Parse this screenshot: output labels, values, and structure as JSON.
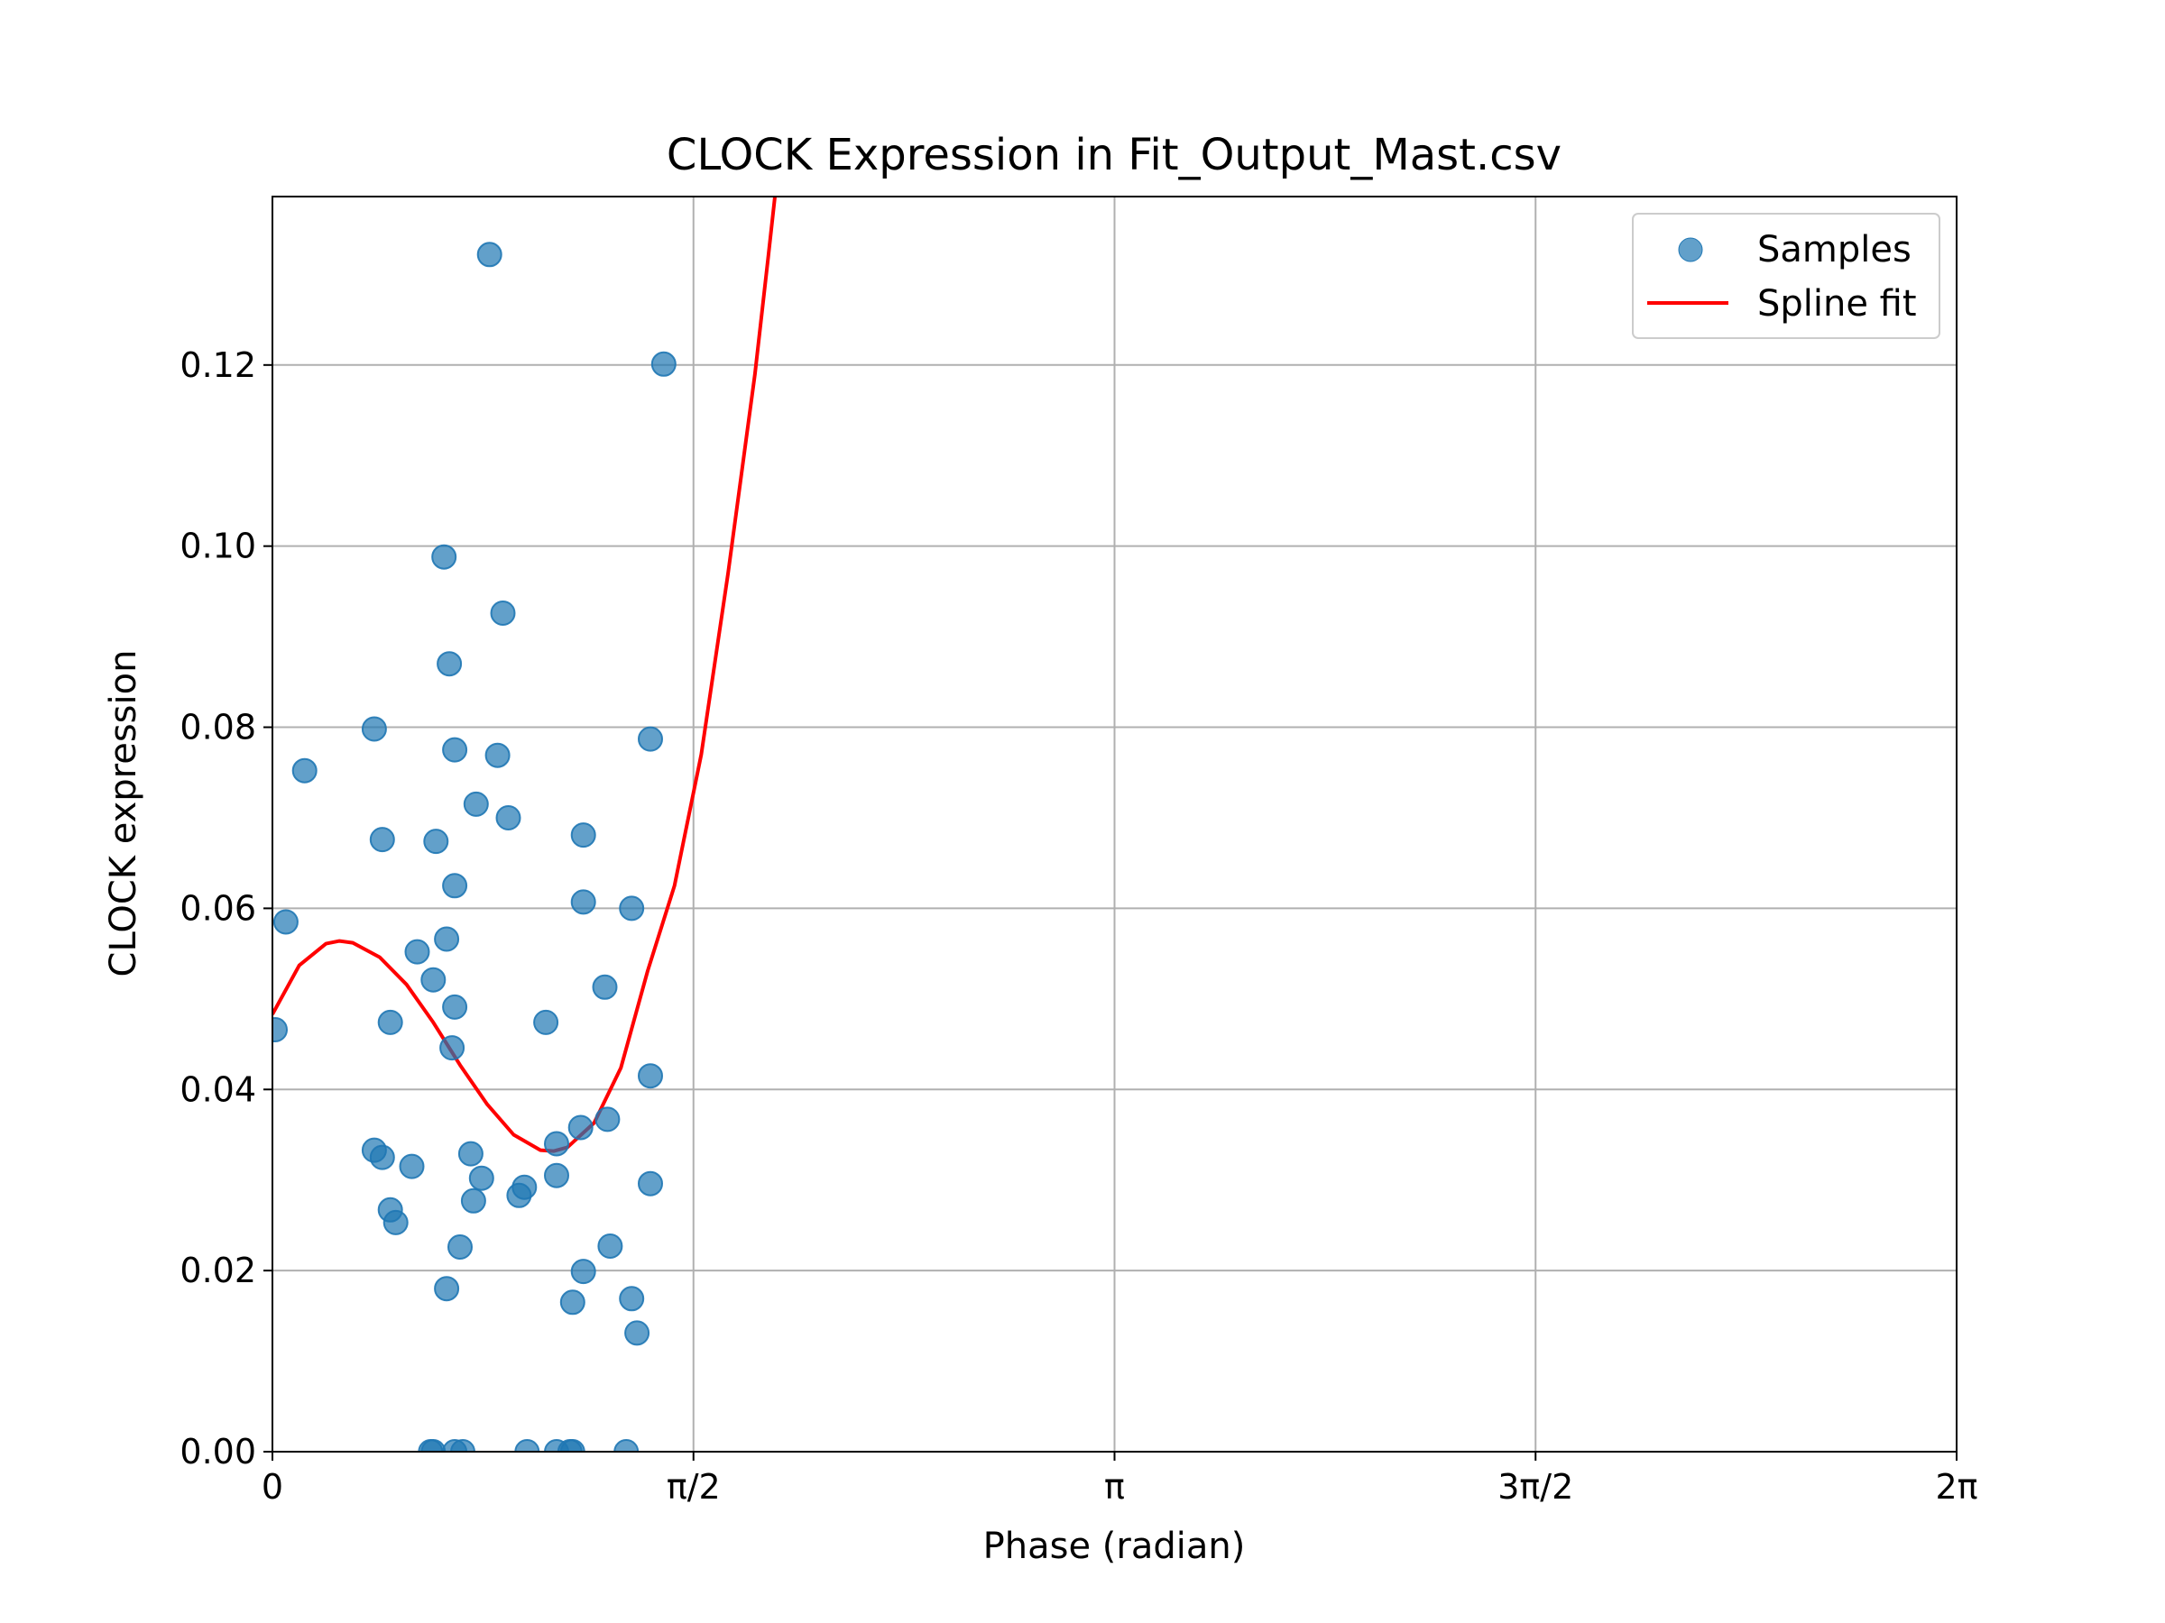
{
  "chart_data": {
    "type": "scatter",
    "title": "CLOCK Expression in Fit_Output_Mast.csv",
    "xlabel": "Phase (radian)",
    "ylabel": "CLOCK expression",
    "xlim": [
      0,
      6.2832
    ],
    "ylim": [
      0,
      0.1386
    ],
    "grid": true,
    "legend_position": "top-right",
    "x_ticks": [
      {
        "value": 0,
        "label": "0"
      },
      {
        "value": 1.5708,
        "label": "π/2"
      },
      {
        "value": 3.1416,
        "label": "π"
      },
      {
        "value": 4.7124,
        "label": "3π/2"
      },
      {
        "value": 6.2832,
        "label": "2π"
      }
    ],
    "y_ticks": [
      {
        "value": 0,
        "label": "0.00"
      },
      {
        "value": 0.02,
        "label": "0.02"
      },
      {
        "value": 0.04,
        "label": "0.04"
      },
      {
        "value": 0.06,
        "label": "0.06"
      },
      {
        "value": 0.08,
        "label": "0.08"
      },
      {
        "value": 0.1,
        "label": "0.10"
      },
      {
        "value": 0.12,
        "label": "0.12"
      }
    ],
    "series": [
      {
        "name": "Samples",
        "kind": "scatter",
        "color": "#1f77b4",
        "alpha": 0.7,
        "points": [
          [
            0.01,
            0.0466
          ],
          [
            0.05,
            0.0585
          ],
          [
            0.12,
            0.0752
          ],
          [
            0.38,
            0.0798
          ],
          [
            0.41,
            0.0676
          ],
          [
            0.38,
            0.0333
          ],
          [
            0.41,
            0.0325
          ],
          [
            0.44,
            0.0474
          ],
          [
            0.44,
            0.0267
          ],
          [
            0.46,
            0.0253
          ],
          [
            0.52,
            0.0315
          ],
          [
            0.54,
            0.0552
          ],
          [
            0.6,
            0.0521
          ],
          [
            0.61,
            0.0674
          ],
          [
            0.64,
            0.0988
          ],
          [
            0.65,
            0.0566
          ],
          [
            0.65,
            0.018
          ],
          [
            0.66,
            0.087
          ],
          [
            0.67,
            0.0446
          ],
          [
            0.68,
            0.0775
          ],
          [
            0.68,
            0.0625
          ],
          [
            0.68,
            0.0491
          ],
          [
            0.7,
            0.0226
          ],
          [
            0.74,
            0.0329
          ],
          [
            0.75,
            0.0277
          ],
          [
            0.76,
            0.0715
          ],
          [
            0.78,
            0.0302
          ],
          [
            0.81,
            0.1322
          ],
          [
            0.84,
            0.0769
          ],
          [
            0.86,
            0.0926
          ],
          [
            0.88,
            0.07
          ],
          [
            0.92,
            0.0283
          ],
          [
            0.94,
            0.0292
          ],
          [
            1.02,
            0.0474
          ],
          [
            1.06,
            0.034
          ],
          [
            1.06,
            0.0305
          ],
          [
            1.12,
            0.0165
          ],
          [
            1.15,
            0.0358
          ],
          [
            1.16,
            0.0681
          ],
          [
            1.16,
            0.0607
          ],
          [
            1.16,
            0.0199
          ],
          [
            1.24,
            0.0513
          ],
          [
            1.25,
            0.0367
          ],
          [
            1.26,
            0.0227
          ],
          [
            1.34,
            0.0169
          ],
          [
            1.34,
            0.06
          ],
          [
            1.36,
            0.0131
          ],
          [
            1.41,
            0.0787
          ],
          [
            1.41,
            0.0415
          ],
          [
            1.41,
            0.0296
          ],
          [
            1.46,
            0.1201
          ],
          [
            0.59,
            0.0
          ],
          [
            0.6,
            0.0
          ],
          [
            0.68,
            0.0
          ],
          [
            0.71,
            0.0
          ],
          [
            0.95,
            0.0
          ],
          [
            1.06,
            0.0
          ],
          [
            1.11,
            0.0
          ],
          [
            1.12,
            0.0
          ],
          [
            1.32,
            0.0
          ]
        ]
      },
      {
        "name": "Spline fit",
        "kind": "line",
        "color": "#ff0000",
        "points": [
          [
            0.0,
            0.0483
          ],
          [
            0.1,
            0.0537
          ],
          [
            0.2,
            0.0561
          ],
          [
            0.25,
            0.0564
          ],
          [
            0.3,
            0.0562
          ],
          [
            0.4,
            0.0546
          ],
          [
            0.5,
            0.0516
          ],
          [
            0.6,
            0.0474
          ],
          [
            0.7,
            0.0427
          ],
          [
            0.8,
            0.0384
          ],
          [
            0.9,
            0.035
          ],
          [
            1.0,
            0.0333
          ],
          [
            1.05,
            0.0332
          ],
          [
            1.1,
            0.0336
          ],
          [
            1.2,
            0.0363
          ],
          [
            1.3,
            0.0424
          ],
          [
            1.4,
            0.0531
          ],
          [
            1.5,
            0.0625
          ],
          [
            1.6,
            0.077
          ],
          [
            1.7,
            0.097
          ],
          [
            1.8,
            0.119
          ],
          [
            1.85,
            0.132
          ],
          [
            1.88,
            0.14
          ]
        ]
      }
    ]
  }
}
